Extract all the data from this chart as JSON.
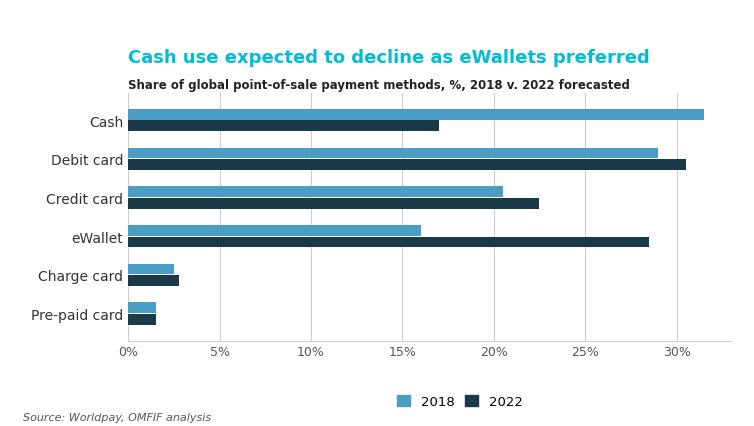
{
  "title": "Cash use expected to decline as eWallets preferred",
  "subtitle": "Share of global point-of-sale payment methods, %, 2018 v. 2022 forecasted",
  "source": "Source: Worldpay, OMFIF analysis",
  "categories": [
    "Pre-paid card",
    "Charge card",
    "eWallet",
    "Credit card",
    "Debit card",
    "Cash"
  ],
  "values_2018": [
    1.5,
    2.5,
    16.0,
    20.5,
    29.0,
    31.5
  ],
  "values_2022": [
    1.5,
    2.8,
    28.5,
    22.5,
    30.5,
    17.0
  ],
  "color_2018": "#4a9dc4",
  "color_2022": "#1a3a4a",
  "title_color": "#00bcd4",
  "subtitle_color": "#222222",
  "xlim": [
    0,
    33
  ],
  "xticks": [
    0,
    5,
    10,
    15,
    20,
    25,
    30
  ],
  "xtick_labels": [
    "0%",
    "5%",
    "10%",
    "15%",
    "20%",
    "25%",
    "30%"
  ],
  "background_color": "#ffffff",
  "legend_labels": [
    "2018",
    "2022"
  ],
  "bar_height": 0.28,
  "figsize": [
    7.54,
    4.27
  ],
  "dpi": 100
}
